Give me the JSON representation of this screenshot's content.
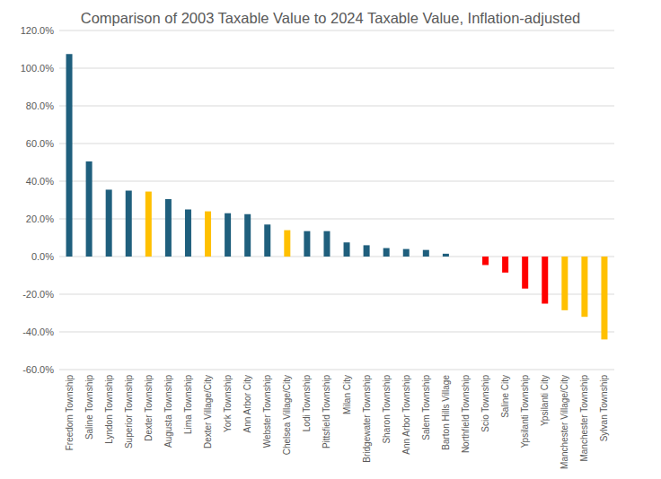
{
  "chart_data": {
    "type": "bar",
    "title": "Comparison of 2003 Taxable Value to 2024 Taxable Value, Inflation-adjusted",
    "categories": [
      "Freedom Township",
      "Saline Township",
      "Lyndon Township",
      "Superior Township",
      "Dexter Township",
      "Augusta Township",
      "Lima Township",
      "Dexter Village/City",
      "York Township",
      "Ann Arbor City",
      "Webster Township",
      "Chelsea Village/City",
      "Lodi Township",
      "Pittsfield Township",
      "Milan City",
      "Bridgewater Township",
      "Sharon Township",
      "Ann Arbor Township",
      "Salem Township",
      "Barton Hills Village",
      "Northfield Township",
      "Scio Township",
      "Saline City",
      "Ypsilanti Township",
      "Ypsilanti City",
      "Manchester Village/City",
      "Manchester Township",
      "Sylvan Township"
    ],
    "values": [
      107.5,
      50.5,
      35.5,
      35,
      34.5,
      30.5,
      25,
      24,
      23,
      22.5,
      17,
      14,
      13.5,
      13.5,
      7.5,
      6,
      4.5,
      4,
      3.5,
      1.5,
      0,
      -4.5,
      -8.5,
      -17,
      -25,
      -28.5,
      -32,
      -44
    ],
    "colors": [
      "#1f5f7d",
      "#1f5f7d",
      "#1f5f7d",
      "#1f5f7d",
      "#ffc000",
      "#1f5f7d",
      "#1f5f7d",
      "#ffc000",
      "#1f5f7d",
      "#1f5f7d",
      "#1f5f7d",
      "#ffc000",
      "#1f5f7d",
      "#1f5f7d",
      "#1f5f7d",
      "#1f5f7d",
      "#1f5f7d",
      "#1f5f7d",
      "#1f5f7d",
      "#1f5f7d",
      "#1f5f7d",
      "#ff0000",
      "#ff0000",
      "#ff0000",
      "#ff0000",
      "#ffc000",
      "#ffc000",
      "#ffc000"
    ],
    "ylim": [
      -60,
      120
    ],
    "yticks": [
      {
        "value": -60,
        "label": "-60.0%"
      },
      {
        "value": -40,
        "label": "-40.0%"
      },
      {
        "value": -20,
        "label": "-20.0%"
      },
      {
        "value": 0,
        "label": "0.0%"
      },
      {
        "value": 20,
        "label": "20.0%"
      },
      {
        "value": 40,
        "label": "40.0%"
      },
      {
        "value": 60,
        "label": "60.0%"
      },
      {
        "value": 80,
        "label": "80.0%"
      },
      {
        "value": 100,
        "label": "100.0%"
      },
      {
        "value": 120,
        "label": "120.0%"
      }
    ],
    "grid": true
  }
}
